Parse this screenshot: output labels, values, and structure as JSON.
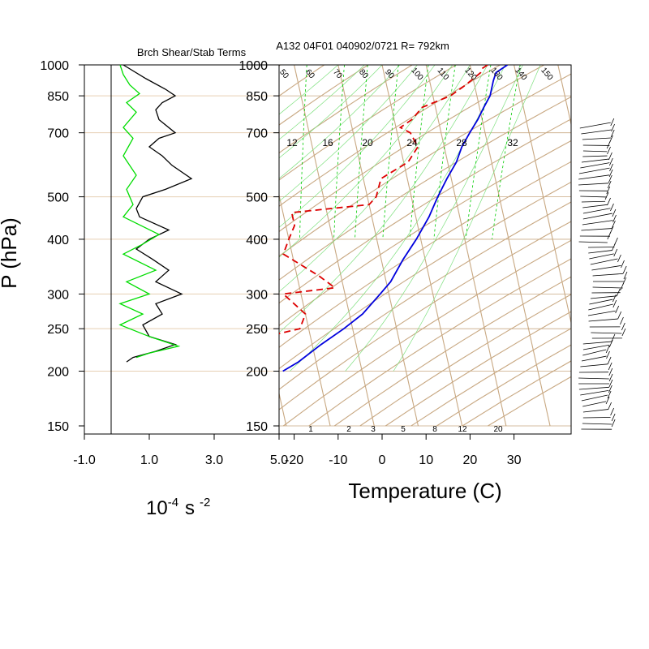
{
  "header": {
    "left_title": "Brch Shear/Stab Terms",
    "right_title": "A132 04F01 040902/0721 R= 792km"
  },
  "y_axis_label": "P (hPa)",
  "pressure_ticks": [
    "150",
    "200",
    "250",
    "300",
    "400",
    "500",
    "700",
    "850",
    "1000"
  ],
  "left_panel": {
    "x_ticks": [
      "-1.0",
      "1.0",
      "3.0",
      "5.0"
    ],
    "units_base": "10",
    "units_exp": "-4",
    "units_s": "s",
    "units_exp2": "-2"
  },
  "right_panel": {
    "xlabel": "Temperature (C)",
    "x_ticks": [
      "-20",
      "-10",
      "0",
      "10",
      "20",
      "30"
    ]
  },
  "colors": {
    "grid_tan": "#c8a882",
    "mixing_green": "#00cc00",
    "shear_green": "#00dd00",
    "stab_black": "#000000",
    "temp_blue": "#0000dd",
    "dew_red": "#dd0000"
  },
  "chart_data": [
    {
      "type": "line",
      "title": "Brch Shear/Stab Terms",
      "xlabel": "10^-4 s^-2",
      "ylabel": "P (hPa)",
      "y_scale": "log",
      "ylim": [
        1000,
        150
      ],
      "xlim": [
        -1.0,
        5.0
      ],
      "series": [
        {
          "color": "black",
          "points": [
            [
              0.2,
              1000
            ],
            [
              0.9,
              930
            ],
            [
              1.5,
              880
            ],
            [
              1.8,
              850
            ],
            [
              1.4,
              820
            ],
            [
              1.2,
              790
            ],
            [
              1.3,
              750
            ],
            [
              1.8,
              700
            ],
            [
              1.3,
              680
            ],
            [
              1.0,
              650
            ],
            [
              1.4,
              620
            ],
            [
              1.7,
              590
            ],
            [
              2.3,
              550
            ],
            [
              1.5,
              520
            ],
            [
              0.8,
              500
            ],
            [
              0.6,
              470
            ],
            [
              0.7,
              450
            ],
            [
              1.6,
              420
            ],
            [
              1.0,
              400
            ],
            [
              0.6,
              380
            ],
            [
              1.1,
              360
            ],
            [
              1.6,
              340
            ],
            [
              1.2,
              320
            ],
            [
              2.0,
              300
            ],
            [
              1.2,
              285
            ],
            [
              1.4,
              270
            ],
            [
              0.8,
              255
            ],
            [
              1.0,
              240
            ],
            [
              1.8,
              230
            ],
            [
              1.2,
              222
            ],
            [
              0.5,
              215
            ],
            [
              0.3,
              210
            ]
          ]
        },
        {
          "color": "green",
          "points": [
            [
              0.1,
              1000
            ],
            [
              0.2,
              950
            ],
            [
              0.4,
              900
            ],
            [
              0.7,
              860
            ],
            [
              0.3,
              820
            ],
            [
              0.6,
              780
            ],
            [
              0.2,
              720
            ],
            [
              0.5,
              680
            ],
            [
              0.2,
              620
            ],
            [
              0.6,
              560
            ],
            [
              0.3,
              520
            ],
            [
              0.5,
              480
            ],
            [
              0.2,
              450
            ],
            [
              1.3,
              410
            ],
            [
              0.8,
              390
            ],
            [
              0.2,
              370
            ],
            [
              1.2,
              340
            ],
            [
              0.3,
              320
            ],
            [
              1.0,
              300
            ],
            [
              0.1,
              285
            ],
            [
              0.8,
              270
            ],
            [
              0.1,
              255
            ],
            [
              1.0,
              240
            ],
            [
              1.9,
              228
            ],
            [
              1.0,
              220
            ],
            [
              0.6,
              215
            ]
          ]
        }
      ]
    },
    {
      "type": "line",
      "title": "A132 04F01 040902/0721 R= 792km",
      "xlabel": "Temperature (C)",
      "ylabel": "P (hPa)",
      "skew_t": true,
      "y_scale": "log",
      "ylim": [
        1000,
        150
      ],
      "xlim": [
        -25,
        40
      ],
      "mixing_ratio_labels": [
        "1",
        "2",
        "3",
        "5",
        "8",
        "12",
        "20"
      ],
      "top_mixing_labels": [
        "12",
        "16",
        "20",
        "24",
        "28",
        "32"
      ],
      "dry_adiabat_labels": [
        "50",
        "60",
        "70",
        "80",
        "90",
        "100",
        "110",
        "120",
        "130",
        "140",
        "150"
      ],
      "series": [
        {
          "name": "Temperature",
          "color": "blue",
          "points": [
            [
              28.5,
              1000
            ],
            [
              25.5,
              960
            ],
            [
              24.5,
              920
            ],
            [
              23,
              850
            ],
            [
              21,
              800
            ],
            [
              19,
              750
            ],
            [
              16.5,
              700
            ],
            [
              14,
              650
            ],
            [
              12,
              600
            ],
            [
              9,
              550
            ],
            [
              6,
              500
            ],
            [
              3,
              450
            ],
            [
              -1,
              400
            ],
            [
              -5,
              360
            ],
            [
              -9,
              320
            ],
            [
              -12,
              300
            ],
            [
              -17,
              270
            ],
            [
              -22,
              250
            ],
            [
              -28,
              230
            ],
            [
              -34,
              210
            ],
            [
              -38,
              200
            ]
          ]
        },
        {
          "name": "Dewpoint",
          "color": "red",
          "points": [
            [
              24,
              1000
            ],
            [
              22.5,
              980
            ],
            [
              22,
              960
            ],
            [
              18,
              900
            ],
            [
              14,
              850
            ],
            [
              7,
              800
            ],
            [
              4,
              750
            ],
            [
              1,
              720
            ],
            [
              3,
              700
            ],
            [
              4,
              650
            ],
            [
              1,
              600
            ],
            [
              -6,
              550
            ],
            [
              -8,
              500
            ],
            [
              -10,
              480
            ],
            [
              -28,
              460
            ],
            [
              -28,
              430
            ],
            [
              -30,
              400
            ],
            [
              -32,
              370
            ],
            [
              -25,
              330
            ],
            [
              -22,
              310
            ],
            [
              -34,
              300
            ],
            [
              -30,
              270
            ],
            [
              -32,
              250
            ],
            [
              -40,
              240
            ],
            [
              -45,
              225
            ],
            [
              -46,
              215
            ]
          ]
        }
      ]
    }
  ]
}
